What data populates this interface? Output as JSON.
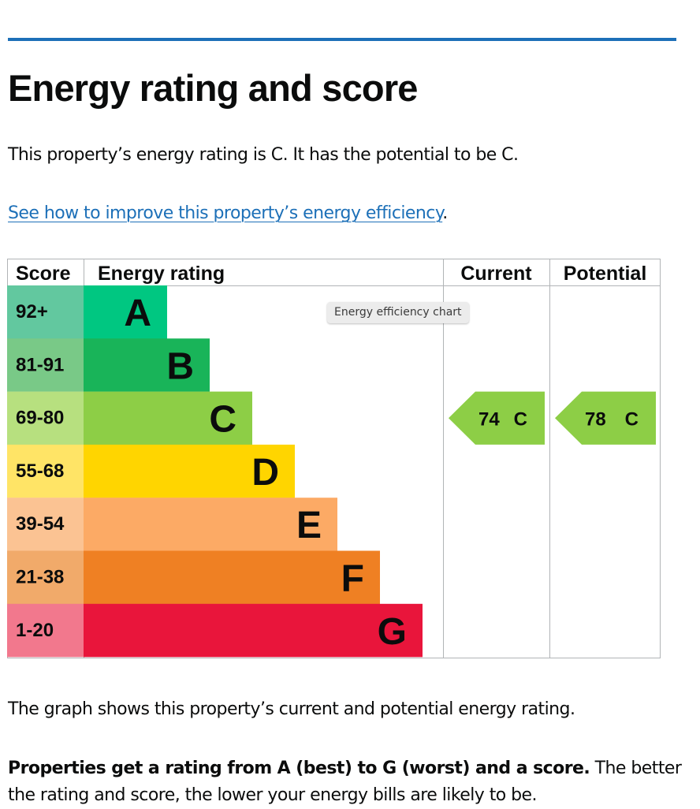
{
  "page": {
    "title": "Energy rating and score",
    "summary": "This property’s energy rating is C. It has the potential to be C.",
    "improve_link": "See how to improve this property’s energy efficiency",
    "improve_link_suffix": ".",
    "graph_description": "The graph shows this property’s current and potential energy rating.",
    "rating_note_bold": "Properties get a rating from A (best) to G (worst) and a score.",
    "rating_note_rest": " The better the rating and score, the lower your energy bills are likely to be.",
    "tooltip": "Energy efficiency chart"
  },
  "colors": {
    "link": "#1d70b8",
    "rule": "#1d70b8",
    "grid": "#b1b4b6"
  },
  "chart_data": {
    "type": "table",
    "title": "Energy efficiency chart",
    "columns": [
      "Score",
      "Energy rating",
      "Current",
      "Potential"
    ],
    "bands": [
      {
        "score": "92+",
        "rating": "A",
        "score_color": "#62c89f",
        "band_color": "#00c781"
      },
      {
        "score": "81-91",
        "rating": "B",
        "score_color": "#79c987",
        "band_color": "#19b459"
      },
      {
        "score": "69-80",
        "rating": "C",
        "score_color": "#b7e07f",
        "band_color": "#8dce46"
      },
      {
        "score": "55-68",
        "rating": "D",
        "score_color": "#ffe466",
        "band_color": "#ffd500"
      },
      {
        "score": "39-54",
        "rating": "E",
        "score_color": "#fbc393",
        "band_color": "#fcaa65"
      },
      {
        "score": "21-38",
        "rating": "F",
        "score_color": "#f1aa6a",
        "band_color": "#ef8023"
      },
      {
        "score": "1-20",
        "rating": "G",
        "score_color": "#f2788d",
        "band_color": "#e9153b"
      }
    ],
    "current": {
      "score": 74,
      "rating": "C",
      "label": "74  C",
      "color": "#8dce46"
    },
    "potential": {
      "score": 78,
      "rating": "C",
      "label": "78  C",
      "color": "#8dce46"
    }
  }
}
